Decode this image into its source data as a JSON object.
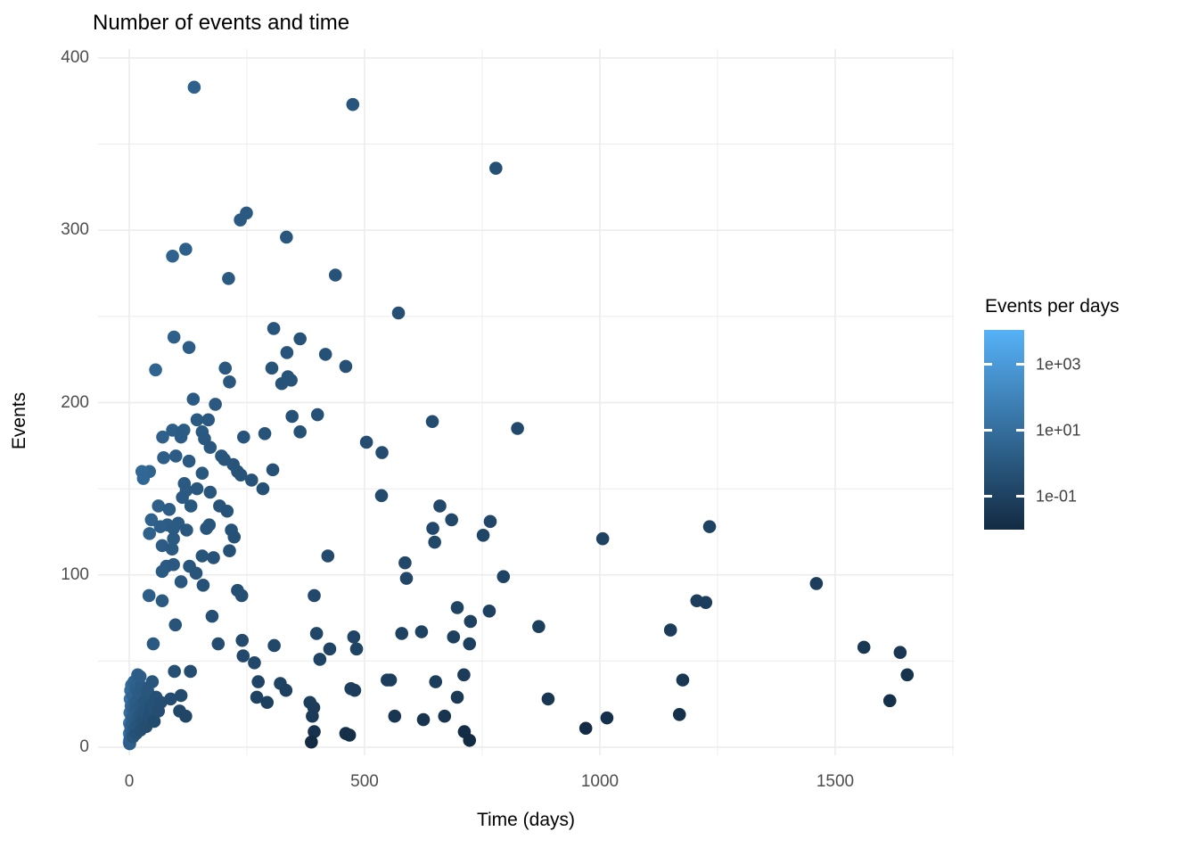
{
  "title": "Number of events and time",
  "x_axis": {
    "label": "Time (days)",
    "tick_labels": [
      "0",
      "500",
      "1000",
      "1500"
    ],
    "tick_values": [
      0,
      500,
      1000,
      1500
    ],
    "minor_tick_values": [
      250,
      750,
      1250,
      1750
    ],
    "range": [
      -66,
      1752
    ]
  },
  "y_axis": {
    "label": "Events",
    "tick_labels": [
      "0",
      "100",
      "200",
      "300",
      "400"
    ],
    "tick_values": [
      0,
      100,
      200,
      300,
      400
    ],
    "minor_tick_values": [
      50,
      150,
      250,
      350
    ],
    "range": [
      -10,
      405
    ]
  },
  "legend": {
    "title": "Events per days",
    "tick_labels": [
      "1e+03",
      "1e+01",
      "1e-01"
    ],
    "tick_values": [
      1000,
      10,
      0.1
    ],
    "scale": "log10",
    "bar_domain_log10": [
      4.05,
      -2.0
    ],
    "color_high": "#56B1F7",
    "color_low": "#132B43",
    "na_color": "#7F7F7F"
  },
  "style_colors": {
    "background": "#FFFFFF",
    "gridline": "#EBEBEB",
    "tick_label": "#4D4D4D",
    "text": "#000000"
  },
  "chart_data": {
    "type": "scatter",
    "title": "Number of events and time",
    "xlabel": "Time (days)",
    "ylabel": "Events",
    "color_label": "Events per days",
    "color_mapping": "events / time_days, log10 scale from 1e-2 (dark #132B43) to 1e+4 (light #56B1F7)",
    "xlim": [
      -66,
      1752
    ],
    "ylim": [
      -10,
      405
    ],
    "grid": "on",
    "legend_position": "right",
    "point_fields": [
      "time_days",
      "events"
    ],
    "points": [
      [
        138,
        383
      ],
      [
        475,
        373
      ],
      [
        779,
        336
      ],
      [
        249,
        310
      ],
      [
        236,
        306
      ],
      [
        334,
        296
      ],
      [
        120,
        289
      ],
      [
        92,
        285
      ],
      [
        438,
        274
      ],
      [
        211,
        272
      ],
      [
        572,
        252
      ],
      [
        307,
        243
      ],
      [
        95,
        238
      ],
      [
        363,
        237
      ],
      [
        127,
        232
      ],
      [
        335,
        229
      ],
      [
        417,
        228
      ],
      [
        460,
        221
      ],
      [
        204,
        220
      ],
      [
        303,
        220
      ],
      [
        56,
        219
      ],
      [
        337,
        215
      ],
      [
        344,
        213
      ],
      [
        213,
        212
      ],
      [
        324,
        211
      ],
      [
        136,
        202
      ],
      [
        183,
        199
      ],
      [
        400,
        193
      ],
      [
        644,
        189
      ],
      [
        825,
        185
      ],
      [
        504,
        177
      ],
      [
        537,
        171
      ],
      [
        346,
        192
      ],
      [
        144,
        190
      ],
      [
        168,
        190
      ],
      [
        92,
        184
      ],
      [
        116,
        184
      ],
      [
        288,
        182
      ],
      [
        363,
        183
      ],
      [
        110,
        180
      ],
      [
        71,
        180
      ],
      [
        243,
        180
      ],
      [
        155,
        183
      ],
      [
        160,
        179
      ],
      [
        172,
        174
      ],
      [
        196,
        169
      ],
      [
        202,
        167
      ],
      [
        221,
        164
      ],
      [
        230,
        160
      ],
      [
        237,
        158
      ],
      [
        305,
        161
      ],
      [
        260,
        155
      ],
      [
        284,
        150
      ],
      [
        155,
        159
      ],
      [
        127,
        166
      ],
      [
        99,
        169
      ],
      [
        73,
        168
      ],
      [
        43,
        160
      ],
      [
        27,
        160
      ],
      [
        117,
        153
      ],
      [
        121,
        149
      ],
      [
        144,
        150
      ],
      [
        172,
        148
      ],
      [
        30,
        156
      ],
      [
        536,
        146
      ],
      [
        113,
        145
      ],
      [
        62,
        140
      ],
      [
        131,
        140
      ],
      [
        192,
        140
      ],
      [
        660,
        140
      ],
      [
        85,
        138
      ],
      [
        208,
        137
      ],
      [
        47,
        132
      ],
      [
        685,
        132
      ],
      [
        767,
        131
      ],
      [
        104,
        130
      ],
      [
        81,
        129
      ],
      [
        170,
        129
      ],
      [
        1233,
        128
      ],
      [
        66,
        128
      ],
      [
        94,
        127
      ],
      [
        164,
        127
      ],
      [
        645,
        127
      ],
      [
        122,
        126
      ],
      [
        217,
        126
      ],
      [
        43,
        124
      ],
      [
        223,
        122
      ],
      [
        752,
        123
      ],
      [
        94,
        121
      ],
      [
        1006,
        121
      ],
      [
        649,
        119
      ],
      [
        70,
        117
      ],
      [
        91,
        115
      ],
      [
        213,
        114
      ],
      [
        155,
        111
      ],
      [
        422,
        111
      ],
      [
        179,
        110
      ],
      [
        586,
        107
      ],
      [
        79,
        105
      ],
      [
        128,
        105
      ],
      [
        94,
        106
      ],
      [
        70,
        102
      ],
      [
        142,
        101
      ],
      [
        795,
        99
      ],
      [
        589,
        98
      ],
      [
        110,
        96
      ],
      [
        1460,
        95
      ],
      [
        157,
        94
      ],
      [
        230,
        91
      ],
      [
        239,
        88
      ],
      [
        42,
        88
      ],
      [
        393,
        88
      ],
      [
        70,
        85
      ],
      [
        1206,
        85
      ],
      [
        1225,
        84
      ],
      [
        697,
        81
      ],
      [
        765,
        79
      ],
      [
        176,
        76
      ],
      [
        725,
        73
      ],
      [
        98,
        71
      ],
      [
        870,
        70
      ],
      [
        1150,
        68
      ],
      [
        398,
        66
      ],
      [
        477,
        64
      ],
      [
        240,
        62
      ],
      [
        51,
        60
      ],
      [
        189,
        60
      ],
      [
        308,
        59
      ],
      [
        579,
        66
      ],
      [
        621,
        67
      ],
      [
        689,
        64
      ],
      [
        723,
        60
      ],
      [
        1561,
        58
      ],
      [
        483,
        57
      ],
      [
        426,
        57
      ],
      [
        1638,
        55
      ],
      [
        242,
        53
      ],
      [
        405,
        51
      ],
      [
        266,
        49
      ],
      [
        711,
        42
      ],
      [
        1653,
        42
      ],
      [
        548,
        39
      ],
      [
        555,
        39
      ],
      [
        651,
        38
      ],
      [
        1176,
        39
      ],
      [
        274,
        38
      ],
      [
        321,
        37
      ],
      [
        471,
        34
      ],
      [
        333,
        33
      ],
      [
        271,
        29
      ],
      [
        697,
        29
      ],
      [
        890,
        28
      ],
      [
        1616,
        27
      ],
      [
        293,
        26
      ],
      [
        384,
        26
      ],
      [
        392,
        23
      ],
      [
        389,
        18
      ],
      [
        564,
        18
      ],
      [
        625,
        16
      ],
      [
        670,
        18
      ],
      [
        1169,
        19
      ],
      [
        1015,
        17
      ],
      [
        970,
        11
      ],
      [
        393,
        9
      ],
      [
        712,
        9
      ],
      [
        460,
        8
      ],
      [
        468,
        7
      ],
      [
        387,
        3
      ],
      [
        723,
        4
      ],
      [
        479,
        33
      ],
      [
        0.01,
        3
      ],
      [
        0.2,
        8
      ],
      [
        0.5,
        14
      ],
      [
        1,
        2
      ],
      [
        1.5,
        20
      ],
      [
        2,
        5
      ],
      [
        2,
        28
      ],
      [
        3,
        12
      ],
      [
        3,
        33
      ],
      [
        4,
        9
      ],
      [
        4,
        24
      ],
      [
        5,
        17
      ],
      [
        5,
        36
      ],
      [
        6,
        14
      ],
      [
        7,
        22
      ],
      [
        8,
        30
      ],
      [
        8,
        6
      ],
      [
        9,
        18
      ],
      [
        10,
        11
      ],
      [
        10,
        38
      ],
      [
        11,
        26
      ],
      [
        12,
        16
      ],
      [
        13,
        22
      ],
      [
        14,
        34
      ],
      [
        15,
        8
      ],
      [
        16,
        27
      ],
      [
        17,
        13
      ],
      [
        18,
        42
      ],
      [
        19,
        31
      ],
      [
        20,
        18
      ],
      [
        22,
        24
      ],
      [
        24,
        10
      ],
      [
        26,
        35
      ],
      [
        28,
        15
      ],
      [
        30,
        21
      ],
      [
        33,
        27
      ],
      [
        36,
        12
      ],
      [
        39,
        33
      ],
      [
        42,
        18
      ],
      [
        45,
        24
      ],
      [
        49,
        38
      ],
      [
        53,
        15
      ],
      [
        57,
        29
      ],
      [
        62,
        21
      ],
      [
        67,
        26
      ],
      [
        23,
        41
      ],
      [
        88,
        28
      ],
      [
        96,
        44
      ],
      [
        107,
        21
      ],
      [
        120,
        18
      ],
      [
        130,
        44
      ],
      [
        110,
        30
      ]
    ],
    "na_points": [
      [
        0.8,
        4
      ]
    ]
  }
}
